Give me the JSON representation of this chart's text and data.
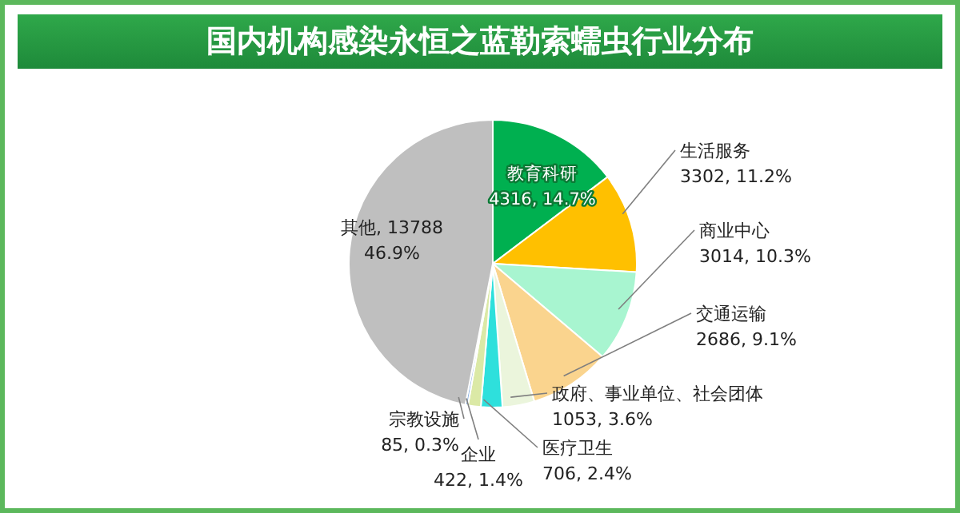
{
  "chart_data": {
    "type": "pie",
    "title": "国内机构感染永恒之蓝勒索蠕虫行业分布",
    "categories": [
      "教育科研",
      "生活服务",
      "商业中心",
      "交通运输",
      "政府、事业单位、社会团体",
      "医疗卫生",
      "企业",
      "宗教设施",
      "其他"
    ],
    "values": [
      4316,
      3302,
      3014,
      2686,
      1053,
      706,
      422,
      85,
      13788
    ],
    "colors": [
      "#00b050",
      "#ffc000",
      "#a8f5d0",
      "#fad48e",
      "#ebf5dc",
      "#2ee0dc",
      "#dbe9a6",
      "#8db3e2",
      "#bfbfbf"
    ],
    "value_labels": [
      "\n4316, 14.7%",
      "\n3302, 11.2%",
      "\n3014, 10.3%",
      "\n2686, 9.1%",
      "\n1053, 3.6%",
      "\n706, 2.4%",
      "\n422, 1.4%",
      "\n85, 0.3%",
      ", 13788\n46.9%"
    ],
    "legend": false
  }
}
